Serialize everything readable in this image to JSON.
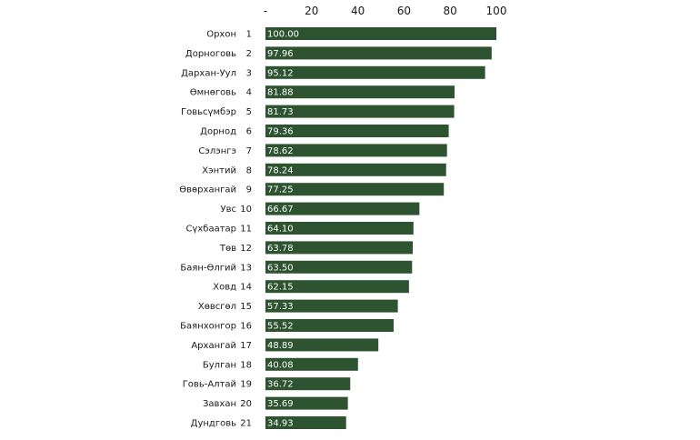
{
  "chart_data": {
    "type": "bar",
    "orientation": "horizontal",
    "x_ticks": [
      "-",
      "20",
      "40",
      "60",
      "80",
      "100"
    ],
    "xlim": [
      0,
      100
    ],
    "x_axis_position": "top",
    "grid": false,
    "bar_color": "#2e5330",
    "value_label_color": "#ffffff",
    "categories": [
      "Орхон",
      "Дорноговь",
      "Дархан-Уул",
      "Өмнөговь",
      "Говьсүмбэр",
      "Дорнод",
      "Сэлэнгэ",
      "Хэнтий",
      "Өвөрхангай",
      "Увс",
      "Сүхбаатар",
      "Төв",
      "Баян-Өлгий",
      "Ховд",
      "Хөвсгөл",
      "Баянхонгор",
      "Архангай",
      "Булган",
      "Говь-Алтай",
      "Завхан",
      "Дундговь"
    ],
    "ranks": [
      "1",
      "2",
      "3",
      "4",
      "5",
      "6",
      "7",
      "8",
      "9",
      "10",
      "11",
      "12",
      "13",
      "14",
      "15",
      "16",
      "17",
      "18",
      "19",
      "20",
      "21"
    ],
    "values": [
      100.0,
      97.96,
      95.12,
      81.88,
      81.73,
      79.36,
      78.62,
      78.24,
      77.25,
      66.67,
      64.1,
      63.78,
      63.5,
      62.15,
      57.33,
      55.52,
      48.89,
      40.08,
      36.72,
      35.69,
      34.93
    ],
    "value_labels": [
      "100.00",
      "97.96",
      "95.12",
      "81.88",
      "81.73",
      "79.36",
      "78.62",
      "78.24",
      "77.25",
      "66.67",
      "64.10",
      "63.78",
      "63.50",
      "62.15",
      "57.33",
      "55.52",
      "48.89",
      "40.08",
      "36.72",
      "35.69",
      "34.93"
    ]
  }
}
